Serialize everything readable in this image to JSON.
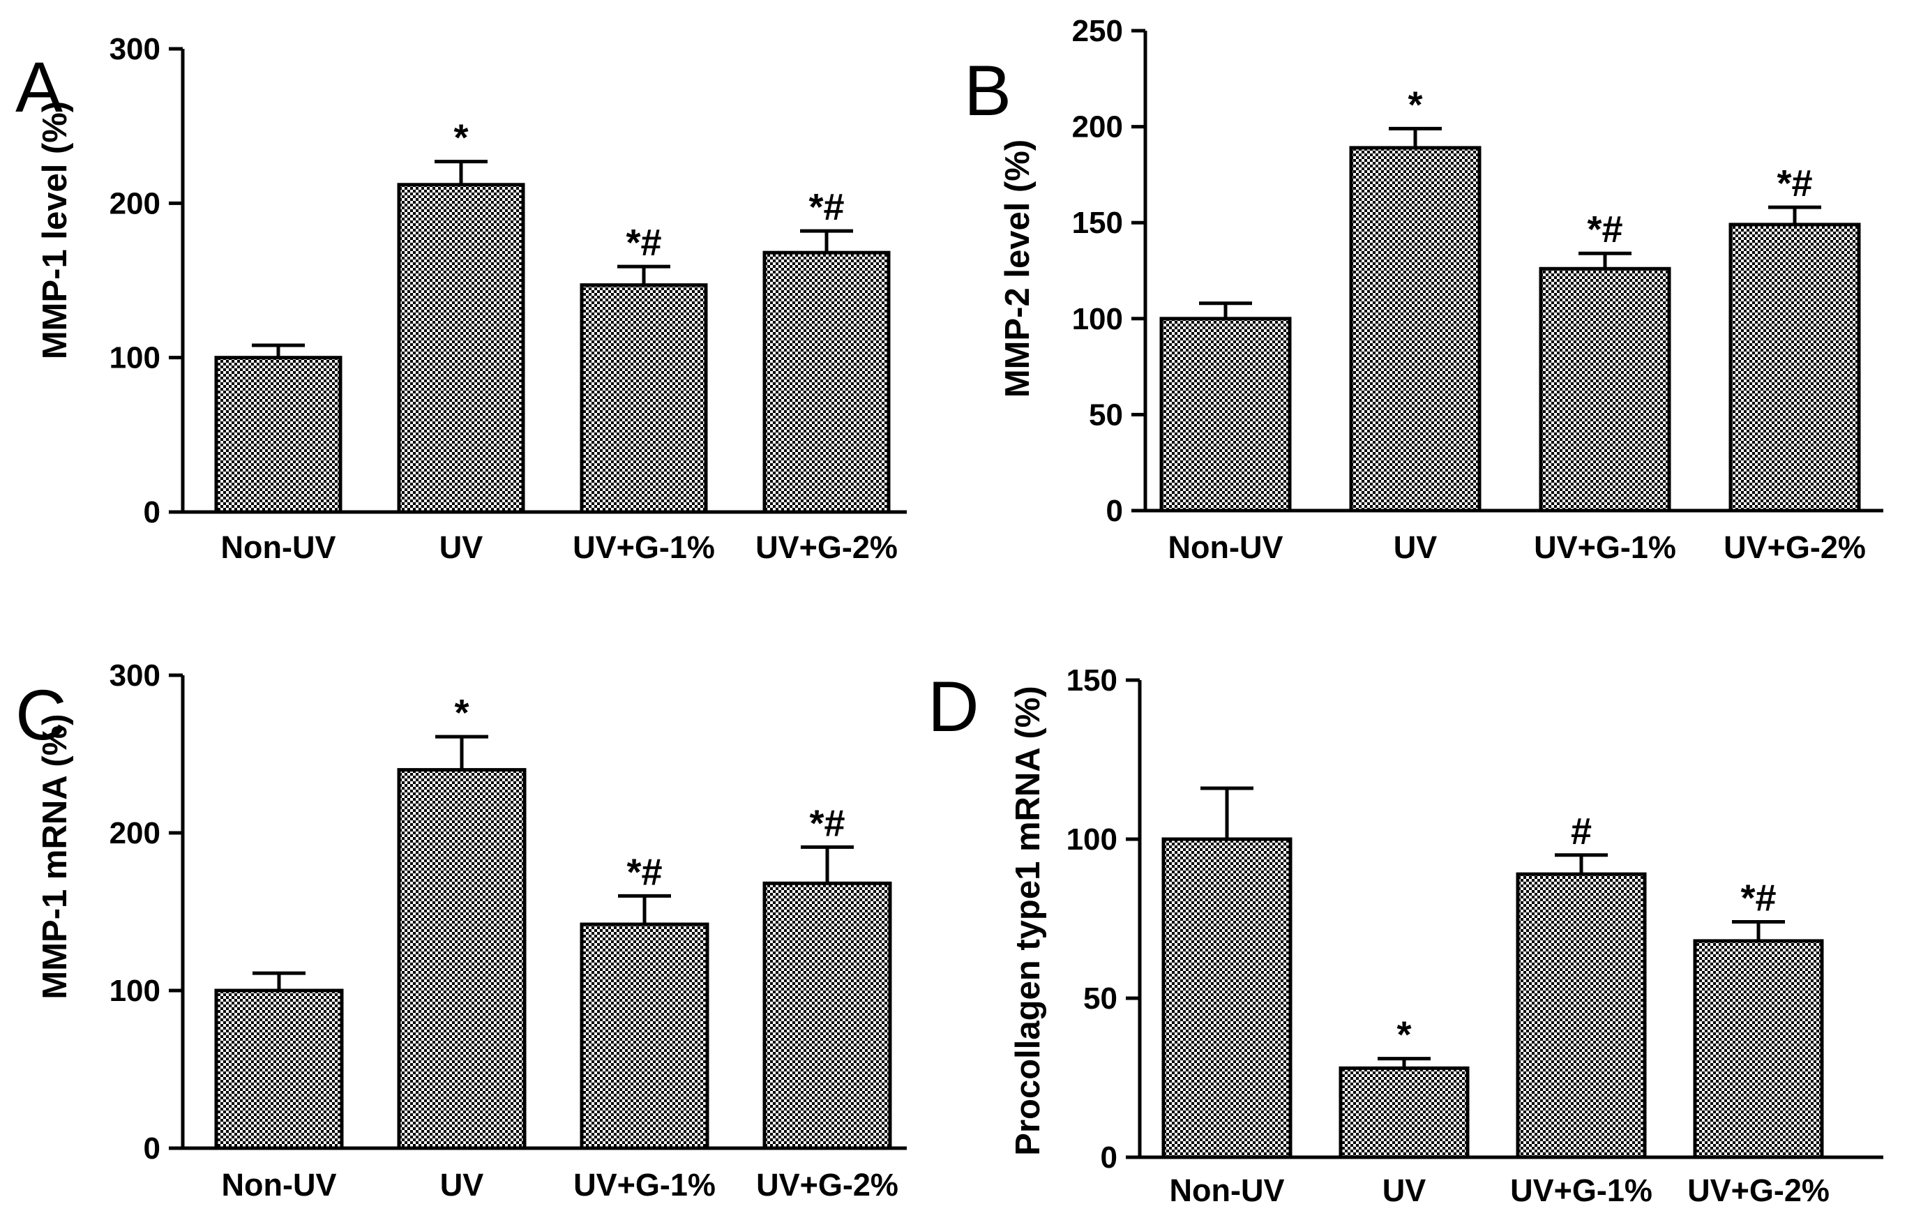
{
  "figure": {
    "description_free": true
  },
  "colors": {
    "bar_fill_light": "#ffffff",
    "bar_fill_dark": "#000000",
    "axis": "#000000",
    "text": "#000000"
  },
  "chart_data": [
    {
      "panel": "A",
      "type": "bar",
      "title": "",
      "xlabel": "",
      "ylabel": "MMP-1 level (%)",
      "categories": [
        "Non-UV",
        "UV",
        "UV+G-1%",
        "UV+G-2%"
      ],
      "values": [
        100,
        212,
        147,
        168
      ],
      "errors": [
        8,
        15,
        12,
        14
      ],
      "annotations": [
        "",
        "*",
        "*#",
        "*#"
      ],
      "ylim": [
        0,
        300
      ],
      "yticks": [
        0,
        100,
        200,
        300
      ],
      "grid": false
    },
    {
      "panel": "B",
      "type": "bar",
      "title": "",
      "xlabel": "",
      "ylabel": "MMP-2 level (%)",
      "categories": [
        "Non-UV",
        "UV",
        "UV+G-1%",
        "UV+G-2%"
      ],
      "values": [
        100,
        189,
        126,
        149
      ],
      "errors": [
        8,
        10,
        8,
        9
      ],
      "annotations": [
        "",
        "*",
        "*#",
        "*#"
      ],
      "ylim": [
        0,
        250
      ],
      "yticks": [
        0,
        50,
        100,
        150,
        200,
        250
      ],
      "grid": false
    },
    {
      "panel": "C",
      "type": "bar",
      "title": "",
      "xlabel": "",
      "ylabel": "MMP-1 mRNA (%)",
      "categories": [
        "Non-UV",
        "UV",
        "UV+G-1%",
        "UV+G-2%"
      ],
      "values": [
        100,
        240,
        142,
        168
      ],
      "errors": [
        11,
        21,
        18,
        23
      ],
      "annotations": [
        "",
        "*",
        "*#",
        "*#"
      ],
      "ylim": [
        0,
        300
      ],
      "yticks": [
        0,
        100,
        200,
        300
      ],
      "grid": false
    },
    {
      "panel": "D",
      "type": "bar",
      "title": "",
      "xlabel": "",
      "ylabel": "Procollagen type1 mRNA (%)",
      "categories": [
        "Non-UV",
        "UV",
        "UV+G-1%",
        "UV+G-2%"
      ],
      "values": [
        100,
        28,
        89,
        68
      ],
      "errors": [
        16,
        3,
        6,
        6
      ],
      "annotations": [
        "",
        "*",
        "#",
        "*#"
      ],
      "ylim": [
        0,
        150
      ],
      "yticks": [
        0,
        50,
        100,
        150
      ],
      "grid": false
    }
  ]
}
